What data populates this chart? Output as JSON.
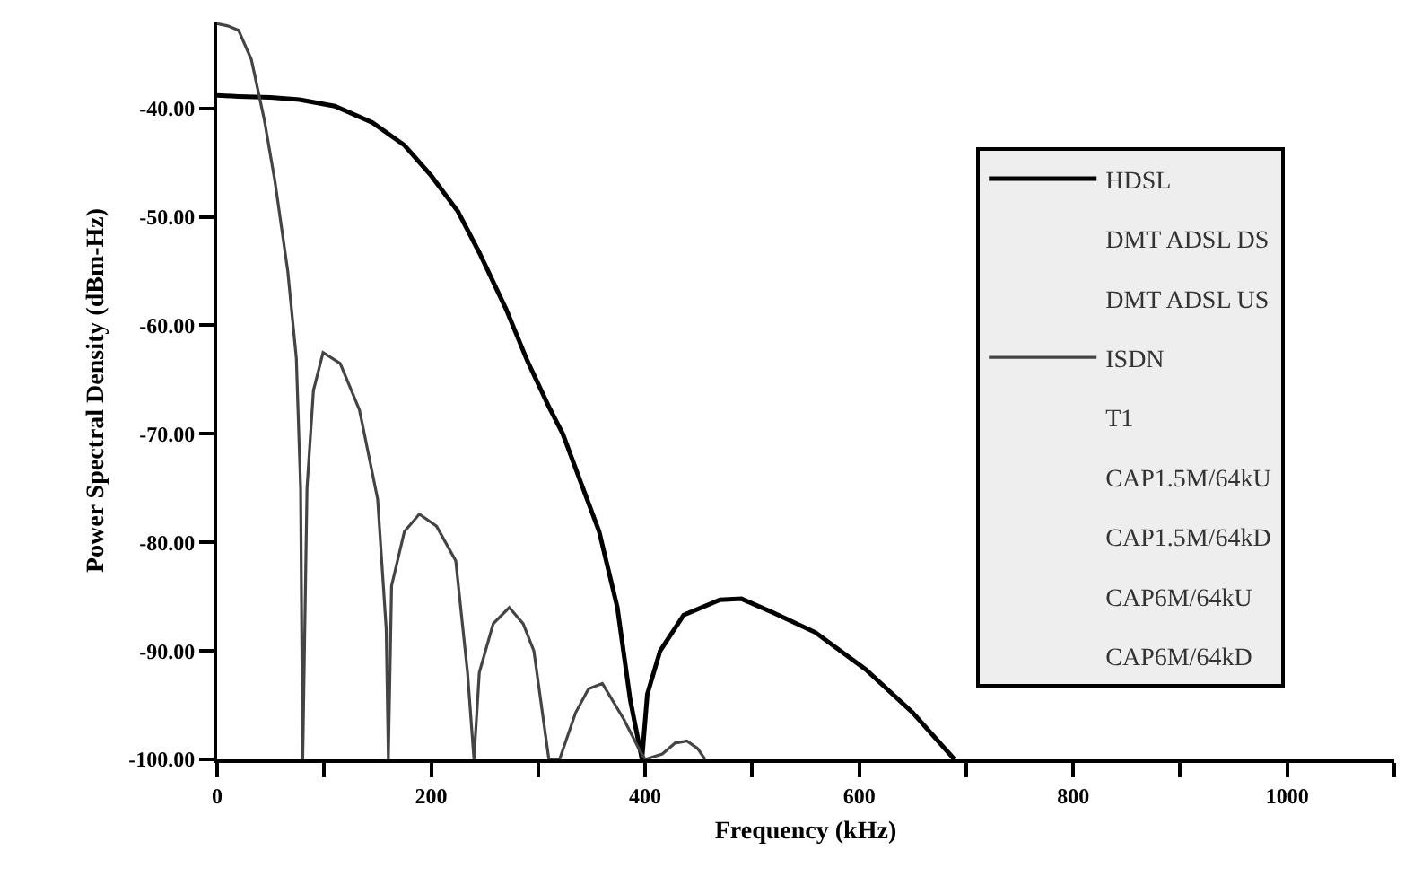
{
  "chart_data": {
    "type": "line",
    "xlabel": "Frequency (kHz)",
    "ylabel": "Power Spectral Density (dBm-Hz)",
    "xlim": [
      0,
      1100
    ],
    "ylim": [
      -100,
      -32
    ],
    "xticks": [
      0,
      {
        "value": 100,
        "label": null
      },
      200,
      {
        "value": 300,
        "label": null
      },
      400,
      {
        "value": 500,
        "label": null
      },
      600,
      {
        "value": 700,
        "label": null
      },
      800,
      {
        "value": 900,
        "label": null
      },
      1000,
      {
        "value": 1100,
        "label": null
      }
    ],
    "yticks": [
      {
        "value": -40,
        "label": "-40.00"
      },
      {
        "value": -50,
        "label": "-50.00"
      },
      {
        "value": -60,
        "label": "-60.00"
      },
      {
        "value": -70,
        "label": "-70.00"
      },
      {
        "value": -80,
        "label": "-80.00"
      },
      {
        "value": -90,
        "label": "-90.00"
      },
      {
        "value": -100,
        "label": "-100.00"
      }
    ],
    "grid": false,
    "legend": "right",
    "marker": "none",
    "line_style": "solid",
    "series": [
      {
        "name": "HDSL",
        "color": "#000000",
        "x": [
          0,
          20,
          50,
          77,
          110,
          145,
          175,
          200,
          225,
          245,
          270,
          290,
          310,
          323,
          340,
          357,
          374,
          386,
          397,
          402,
          414,
          436,
          470,
          490,
          520,
          559,
          606,
          650,
          689
        ],
        "values": [
          -38.8,
          -38.9,
          -39.0,
          -39.2,
          -39.8,
          -41.3,
          -43.4,
          -46.2,
          -49.5,
          -53.3,
          -58.5,
          -63.3,
          -67.5,
          -70,
          -74.5,
          -79,
          -86,
          -94.5,
          -100,
          -94,
          -90,
          -86.7,
          -85.3,
          -85.2,
          -86.5,
          -88.3,
          -91.7,
          -95.7,
          -100
        ]
      },
      {
        "name": "DMT ADSL DS",
        "values": [
          null
        ]
      },
      {
        "name": "DMT ADSL US",
        "values": [
          null
        ]
      },
      {
        "name": "ISDN",
        "color": "#444444",
        "x": [
          0,
          10,
          20,
          32,
          44,
          54,
          66,
          74,
          78,
          80,
          84,
          90,
          99,
          115,
          133,
          150,
          158,
          160,
          163,
          175,
          189,
          205,
          223,
          234,
          240,
          245,
          258,
          273,
          286,
          296,
          310,
          320,
          335,
          347,
          360,
          380,
          394,
          400,
          416,
          428,
          439,
          449,
          456
        ],
        "values": [
          -32.2,
          -32.4,
          -32.8,
          -35.5,
          -41,
          -46.7,
          -55,
          -63,
          -75,
          -100,
          -75,
          -66,
          -62.5,
          -63.5,
          -67.8,
          -76,
          -88,
          -100,
          -84,
          -79,
          -77.4,
          -78.5,
          -81.7,
          -92,
          -100,
          -92,
          -87.5,
          -86,
          -87.5,
          -90,
          -100,
          -100,
          -95.7,
          -93.5,
          -93,
          -96.3,
          -99,
          -100,
          -99.5,
          -98.5,
          -98.3,
          -99,
          -100
        ]
      },
      {
        "name": "T1",
        "values": [
          null
        ]
      },
      {
        "name": "CAP1.5M/64kU",
        "values": [
          null
        ]
      },
      {
        "name": "CAP1.5M/64kD",
        "values": [
          null
        ]
      },
      {
        "name": "CAP6M/64kU",
        "values": [
          null
        ]
      },
      {
        "name": "CAP6M/64kD",
        "values": [
          null
        ]
      }
    ]
  }
}
